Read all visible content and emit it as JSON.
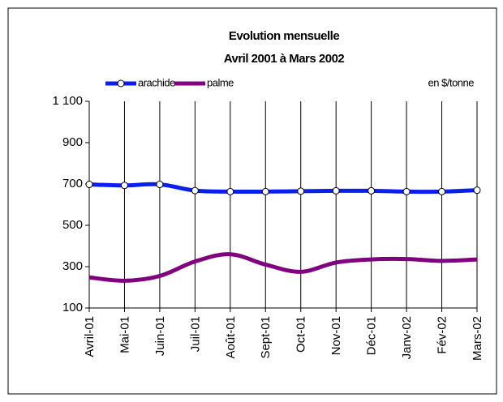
{
  "chart_data": {
    "type": "line",
    "title": "Evolution mensuelle",
    "subtitle": "Avril 2001 à Mars 2002",
    "annotation": "en $/tonne",
    "categories": [
      "Avril-01",
      "Mai-01",
      "Juin-01",
      "Juil-01",
      "Août-01",
      "Sept-01",
      "Oct-01",
      "Nov-01",
      "Déc-01",
      "Janv-02",
      "Fév-02",
      "Mars-02"
    ],
    "series": [
      {
        "name": "arachide",
        "color": "#0a1ef0",
        "values": [
          698,
          693,
          698,
          668,
          663,
          663,
          665,
          667,
          667,
          663,
          663,
          670
        ]
      },
      {
        "name": "palme",
        "color": "#800080",
        "values": [
          248,
          232,
          255,
          325,
          360,
          310,
          275,
          320,
          335,
          337,
          328,
          335
        ]
      }
    ],
    "ylim": [
      100,
      1100
    ],
    "yticks": [
      100,
      300,
      500,
      700,
      900,
      {
        "value": 1100,
        "label": "1 100"
      }
    ],
    "legend": "top"
  }
}
